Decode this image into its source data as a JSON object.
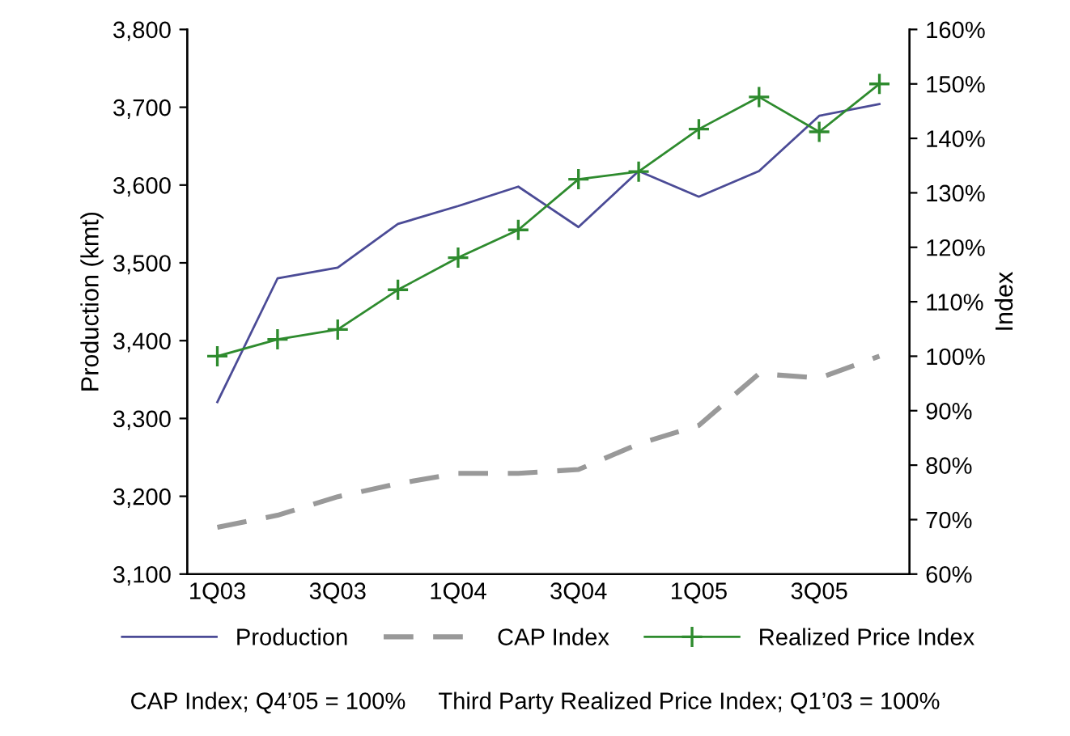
{
  "chart_data": {
    "type": "line",
    "categories": [
      "1Q03",
      null,
      "3Q03",
      null,
      "1Q04",
      null,
      "3Q04",
      null,
      "1Q05",
      null,
      "3Q05",
      null
    ],
    "ylabel": "Production (kmt)",
    "y2label": "Index",
    "ylim": [
      3100,
      3800
    ],
    "yticks": [
      {
        "value": 3100,
        "label": "3,100"
      },
      {
        "value": 3200,
        "label": "3,200"
      },
      {
        "value": 3300,
        "label": "3,300"
      },
      {
        "value": 3400,
        "label": "3,400"
      },
      {
        "value": 3500,
        "label": "3,500"
      },
      {
        "value": 3600,
        "label": "3,600"
      },
      {
        "value": 3700,
        "label": "3,700"
      },
      {
        "value": 3800,
        "label": "3,800"
      }
    ],
    "y2lim": [
      60,
      160
    ],
    "y2ticks": [
      {
        "value": 60,
        "label": "60%"
      },
      {
        "value": 70,
        "label": "70%"
      },
      {
        "value": 80,
        "label": "80%"
      },
      {
        "value": 90,
        "label": "90%"
      },
      {
        "value": 100,
        "label": "100%"
      },
      {
        "value": 110,
        "label": "110%"
      },
      {
        "value": 120,
        "label": "120%"
      },
      {
        "value": 130,
        "label": "130%"
      },
      {
        "value": 140,
        "label": "140%"
      },
      {
        "value": 150,
        "label": "150%"
      },
      {
        "value": 160,
        "label": "160%"
      }
    ],
    "series": [
      {
        "name": "Production",
        "color": "#4b4b96",
        "marker": "none",
        "line_style": "solid",
        "values": [
          3321,
          3480,
          3494,
          3550,
          3573,
          3598,
          3546,
          3618,
          3585,
          3618,
          3689,
          3704
        ]
      },
      {
        "name": "CAP Index",
        "color": "#999999",
        "axis": "y2",
        "marker": "none",
        "line_style": "dashed",
        "values": [
          68.6,
          70.8,
          74.2,
          76.6,
          78.5,
          78.5,
          79.2,
          83.9,
          87.3,
          96.8,
          96.0,
          100
        ]
      },
      {
        "name": "Realized Price Index",
        "color": "#2e8b2e",
        "axis": "y2",
        "marker": "cross",
        "line_style": "solid",
        "values": [
          100,
          103.1,
          104.9,
          112.2,
          118.1,
          123.2,
          132.5,
          133.9,
          141.7,
          147.6,
          141.2,
          150
        ]
      }
    ],
    "legend": "bottom",
    "grid": false,
    "annotations": [
      "CAP Index; Q4’05 = 100%     Third Party Realized Price Index; Q1’03 = 100%"
    ]
  }
}
